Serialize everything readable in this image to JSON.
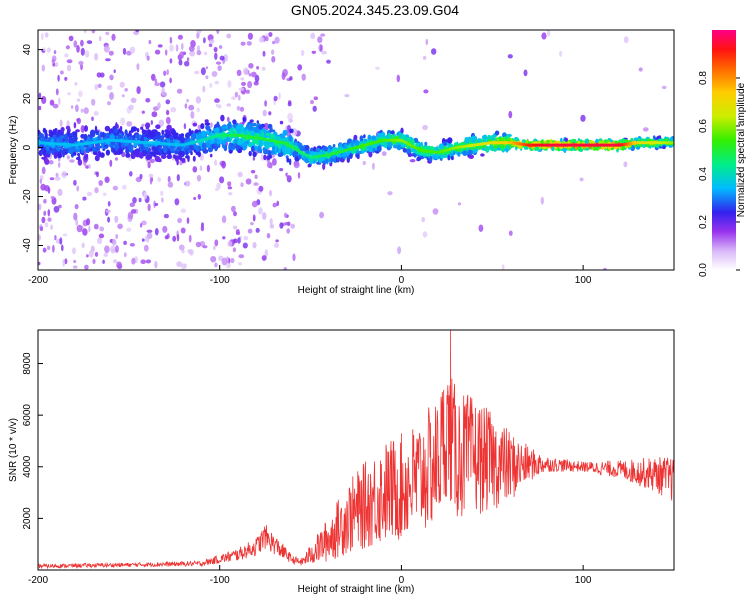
{
  "title": "GN05.2024.345.23.09.G04",
  "chart_data": [
    {
      "type": "heatmap",
      "title": "",
      "xlabel": "Height of straight line (km)",
      "ylabel": "Frequency (Hz)",
      "xlim": [
        -200,
        150
      ],
      "ylim": [
        -50,
        48
      ],
      "xticks": [
        -200,
        -100,
        0,
        100
      ],
      "yticks": [
        -40,
        -20,
        0,
        20,
        40
      ],
      "colorbar": {
        "label": "Normalized spectral amplitude",
        "range": [
          0,
          1
        ],
        "ticks": [
          "0.0",
          "0.2",
          "0.4",
          "0.6",
          "0.8"
        ]
      },
      "ridge": [
        {
          "x": -200,
          "y": 2,
          "amp": 0.35
        },
        {
          "x": -180,
          "y": 1,
          "amp": 0.35
        },
        {
          "x": -160,
          "y": 3,
          "amp": 0.35
        },
        {
          "x": -140,
          "y": 2,
          "amp": 0.35
        },
        {
          "x": -120,
          "y": 1,
          "amp": 0.35
        },
        {
          "x": -100,
          "y": 5,
          "amp": 0.45
        },
        {
          "x": -90,
          "y": 5,
          "amp": 0.5
        },
        {
          "x": -80,
          "y": 4,
          "amp": 0.5
        },
        {
          "x": -65,
          "y": 2,
          "amp": 0.5
        },
        {
          "x": -50,
          "y": -4,
          "amp": 0.45
        },
        {
          "x": -40,
          "y": -3,
          "amp": 0.5
        },
        {
          "x": -30,
          "y": -1,
          "amp": 0.5
        },
        {
          "x": -20,
          "y": 1,
          "amp": 0.55
        },
        {
          "x": -10,
          "y": 3,
          "amp": 0.55
        },
        {
          "x": 0,
          "y": 3,
          "amp": 0.6
        },
        {
          "x": 10,
          "y": -1,
          "amp": 0.55
        },
        {
          "x": 20,
          "y": -2,
          "amp": 0.55
        },
        {
          "x": 30,
          "y": 0,
          "amp": 0.6
        },
        {
          "x": 40,
          "y": 1,
          "amp": 0.65
        },
        {
          "x": 50,
          "y": 2,
          "amp": 0.7
        },
        {
          "x": 60,
          "y": 2,
          "amp": 0.75
        },
        {
          "x": 70,
          "y": 1,
          "amp": 0.9
        },
        {
          "x": 80,
          "y": 1,
          "amp": 0.95
        },
        {
          "x": 100,
          "y": 1,
          "amp": 0.95
        },
        {
          "x": 120,
          "y": 1,
          "amp": 0.95
        },
        {
          "x": 130,
          "y": 2,
          "amp": 0.7
        },
        {
          "x": 150,
          "y": 2,
          "amp": 0.6
        }
      ],
      "annotation": "noise scatter concentrated for heights below -60 km"
    },
    {
      "type": "line",
      "title": "",
      "xlabel": "Height of straight line (km)",
      "ylabel": "SNR (10 * v/v)",
      "xlim": [
        -200,
        150
      ],
      "ylim": [
        0,
        9300
      ],
      "xticks": [
        -200,
        -100,
        0,
        100
      ],
      "yticks": [
        2000,
        4000,
        6000,
        8000
      ],
      "series": [
        {
          "color": "#ee3333",
          "envelope": {
            "x": [
              -200,
              -150,
              -110,
              -90,
              -80,
              -75,
              -70,
              -65,
              -60,
              -55,
              -50,
              -40,
              -30,
              -20,
              -10,
              0,
              10,
              20,
              25,
              30,
              40,
              50,
              60,
              70,
              80,
              100,
              120,
              140,
              150
            ],
            "center": [
              150,
              200,
              250,
              600,
              900,
              1300,
              1000,
              700,
              400,
              300,
              600,
              1200,
              2000,
              2500,
              3000,
              3200,
              3600,
              4200,
              5500,
              4500,
              4400,
              4200,
              4000,
              4100,
              4100,
              4000,
              3900,
              3700,
              3500
            ],
            "spread": [
              80,
              80,
              100,
              250,
              350,
              500,
              400,
              300,
              150,
              150,
              400,
              900,
              1400,
              1700,
              2000,
              2100,
              2300,
              2500,
              2600,
              2600,
              2300,
              1900,
              1400,
              700,
              300,
              200,
              350,
              700,
              900
            ],
            "peak": {
              "x": 27,
              "y": 9300
            }
          }
        }
      ]
    }
  ]
}
